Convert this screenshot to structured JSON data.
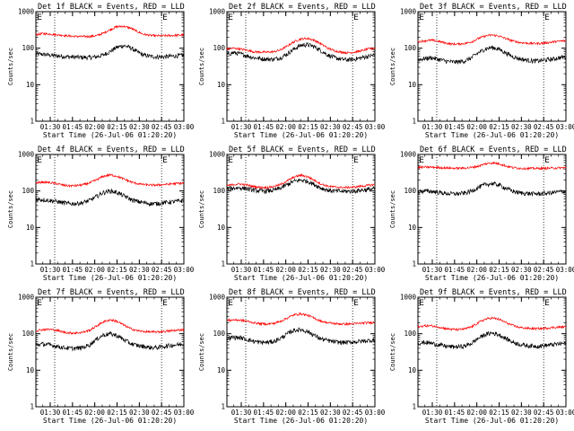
{
  "chart_data": [
    {
      "type": "line",
      "title": "Det 1f BLACK = Events, RED = LLD",
      "xlabel": "Start Time (26-Jul-06 01:20:20)",
      "ylabel": "Counts/sec",
      "yscale": "log",
      "ylim": [
        1,
        1000
      ],
      "xlim": [
        "01:20:20",
        "03:00:00"
      ],
      "x_ticks": [
        "01:30",
        "01:45",
        "02:00",
        "02:15",
        "02:30",
        "02:45",
        "03:00"
      ],
      "y_ticks": [
        "1",
        "10",
        "100",
        "1000"
      ],
      "markers": [
        {
          "label": "E",
          "x": "01:20:30"
        },
        {
          "label": "E",
          "x": "02:45:00"
        }
      ],
      "dotted_vlines": [
        "01:33:00",
        "02:45:00"
      ],
      "legend": "none",
      "grid": false,
      "series": [
        {
          "name": "BLACK = Events",
          "color": "#000000",
          "values": [
            70,
            68,
            65,
            62,
            60,
            58,
            57,
            56,
            56,
            58,
            65,
            80,
            105,
            118,
            105,
            80,
            65,
            60,
            58,
            58,
            60,
            62,
            64
          ]
        },
        {
          "name": "RED = LLD",
          "color": "#ff0000",
          "values": [
            235,
            250,
            245,
            235,
            225,
            215,
            210,
            208,
            210,
            220,
            255,
            320,
            385,
            400,
            360,
            290,
            240,
            225,
            218,
            220,
            222,
            226,
            232
          ]
        }
      ]
    },
    {
      "type": "line",
      "title": "Det 2f BLACK = Events, RED = LLD",
      "xlabel": "Start Time (26-Jul-06 01:20:20)",
      "ylabel": "Counts/sec",
      "yscale": "log",
      "ylim": [
        1,
        1000
      ],
      "xlim": [
        "01:20:20",
        "03:00:00"
      ],
      "x_ticks": [
        "01:30",
        "01:45",
        "02:00",
        "02:15",
        "02:30",
        "02:45",
        "03:00"
      ],
      "y_ticks": [
        "1",
        "10",
        "100",
        "1000"
      ],
      "markers": [
        {
          "label": "E",
          "x": "01:20:30"
        },
        {
          "label": "E",
          "x": "02:45:00"
        }
      ],
      "dotted_vlines": [
        "01:33:00",
        "02:45:00"
      ],
      "legend": "none",
      "grid": false,
      "series": [
        {
          "name": "BLACK = Events",
          "color": "#000000",
          "values": [
            68,
            75,
            70,
            62,
            55,
            52,
            50,
            50,
            55,
            70,
            95,
            120,
            125,
            110,
            85,
            65,
            55,
            50,
            48,
            50,
            55,
            60,
            65
          ]
        },
        {
          "name": "RED = LLD",
          "color": "#ff0000",
          "values": [
            95,
            100,
            95,
            88,
            80,
            78,
            78,
            80,
            90,
            115,
            150,
            180,
            185,
            165,
            130,
            100,
            85,
            78,
            75,
            78,
            85,
            95,
            100
          ]
        }
      ]
    },
    {
      "type": "line",
      "title": "Det 3f BLACK = Events, RED = LLD",
      "xlabel": "Start Time (26-Jul-06 01:20:20)",
      "ylabel": "Counts/sec",
      "yscale": "log",
      "ylim": [
        1,
        1000
      ],
      "xlim": [
        "01:20:20",
        "03:00:00"
      ],
      "x_ticks": [
        "01:30",
        "01:45",
        "02:00",
        "02:15",
        "02:30",
        "02:45",
        "03:00"
      ],
      "y_ticks": [
        "1",
        "10",
        "100",
        "1000"
      ],
      "markers": [
        {
          "label": "E",
          "x": "01:20:30"
        },
        {
          "label": "E",
          "x": "02:45:00"
        }
      ],
      "dotted_vlines": [
        "01:33:00",
        "02:45:00"
      ],
      "legend": "none",
      "grid": false,
      "series": [
        {
          "name": "BLACK = Events",
          "color": "#000000",
          "values": [
            48,
            52,
            55,
            50,
            45,
            42,
            42,
            45,
            55,
            75,
            95,
            105,
            95,
            75,
            60,
            52,
            48,
            45,
            45,
            48,
            50,
            55,
            58
          ]
        },
        {
          "name": "RED = LLD",
          "color": "#ff0000",
          "values": [
            150,
            160,
            165,
            155,
            140,
            130,
            130,
            135,
            150,
            185,
            215,
            230,
            215,
            185,
            160,
            145,
            138,
            135,
            135,
            140,
            148,
            155,
            160
          ]
        }
      ]
    },
    {
      "type": "line",
      "title": "Det 4f BLACK = Events, RED = LLD",
      "xlabel": "Start Time (26-Jul-06 01:20:20)",
      "ylabel": "Counts/sec",
      "yscale": "log",
      "ylim": [
        1,
        1000
      ],
      "xlim": [
        "01:20:20",
        "03:00:00"
      ],
      "x_ticks": [
        "01:30",
        "01:45",
        "02:00",
        "02:15",
        "02:30",
        "02:45",
        "03:00"
      ],
      "y_ticks": [
        "1",
        "10",
        "100",
        "1000"
      ],
      "markers": [
        {
          "label": "E",
          "x": "01:20:30"
        },
        {
          "label": "E",
          "x": "02:45:00"
        }
      ],
      "dotted_vlines": [
        "01:33:00",
        "02:45:00"
      ],
      "legend": "none",
      "grid": false,
      "series": [
        {
          "name": "BLACK = Events",
          "color": "#000000",
          "values": [
            60,
            58,
            55,
            52,
            48,
            45,
            45,
            48,
            55,
            70,
            90,
            100,
            92,
            75,
            60,
            52,
            48,
            45,
            45,
            48,
            50,
            52,
            55
          ]
        },
        {
          "name": "RED = LLD",
          "color": "#ff0000",
          "values": [
            165,
            175,
            170,
            160,
            145,
            138,
            140,
            148,
            165,
            200,
            250,
            275,
            255,
            215,
            180,
            160,
            150,
            145,
            145,
            150,
            155,
            160,
            165
          ]
        }
      ]
    },
    {
      "type": "line",
      "title": "Det 5f BLACK = Events, RED = LLD",
      "xlabel": "Start Time (26-Jul-06 01:20:20)",
      "ylabel": "Counts/sec",
      "yscale": "log",
      "ylim": [
        1,
        1000
      ],
      "xlim": [
        "01:20:20",
        "03:00:00"
      ],
      "x_ticks": [
        "01:30",
        "01:45",
        "02:00",
        "02:15",
        "02:30",
        "02:45",
        "03:00"
      ],
      "y_ticks": [
        "1",
        "10",
        "100",
        "1000"
      ],
      "markers": [
        {
          "label": "E",
          "x": "01:20:30"
        },
        {
          "label": "E",
          "x": "02:45:00"
        }
      ],
      "dotted_vlines": [
        "01:33:00",
        "02:45:00"
      ],
      "legend": "none",
      "grid": false,
      "series": [
        {
          "name": "BLACK = Events",
          "color": "#000000",
          "values": [
            115,
            120,
            122,
            115,
            105,
            100,
            100,
            105,
            120,
            150,
            185,
            200,
            185,
            150,
            120,
            105,
            100,
            98,
            98,
            100,
            105,
            110,
            115
          ]
        },
        {
          "name": "RED = LLD",
          "color": "#ff0000",
          "values": [
            140,
            150,
            155,
            145,
            132,
            125,
            125,
            132,
            150,
            190,
            240,
            270,
            245,
            195,
            155,
            135,
            128,
            125,
            125,
            128,
            135,
            142,
            150
          ]
        }
      ]
    },
    {
      "type": "line",
      "title": "Det 6f BLACK = Events, RED = LLD",
      "xlabel": "Start Time (26-Jul-06 01:20:20)",
      "ylabel": "Counts/sec",
      "yscale": "log",
      "ylim": [
        1,
        1000
      ],
      "xlim": [
        "01:20:20",
        "03:00:00"
      ],
      "x_ticks": [
        "01:30",
        "01:45",
        "02:00",
        "02:15",
        "02:30",
        "02:45",
        "03:00"
      ],
      "y_ticks": [
        "1",
        "10",
        "100",
        "1000"
      ],
      "markers": [
        {
          "label": "E",
          "x": "01:20:30"
        },
        {
          "label": "E",
          "x": "02:45:00"
        }
      ],
      "dotted_vlines": [
        "01:33:00",
        "02:45:00"
      ],
      "legend": "none",
      "grid": false,
      "series": [
        {
          "name": "BLACK = Events",
          "color": "#000000",
          "values": [
            95,
            100,
            98,
            92,
            86,
            84,
            84,
            88,
            100,
            125,
            150,
            160,
            148,
            120,
            100,
            90,
            86,
            84,
            84,
            86,
            90,
            95,
            98
          ]
        },
        {
          "name": "RED = LLD",
          "color": "#ff0000",
          "values": [
            440,
            450,
            448,
            440,
            430,
            420,
            420,
            425,
            440,
            480,
            550,
            590,
            560,
            490,
            440,
            420,
            415,
            415,
            415,
            418,
            422,
            428,
            435
          ]
        }
      ]
    },
    {
      "type": "line",
      "title": "Det 7f BLACK = Events, RED = LLD",
      "xlabel": "Start Time (26-Jul-06 01:20:20)",
      "ylabel": "Counts/sec",
      "yscale": "log",
      "ylim": [
        1,
        1000
      ],
      "xlim": [
        "01:20:20",
        "03:00:00"
      ],
      "x_ticks": [
        "01:30",
        "01:45",
        "02:00",
        "02:15",
        "02:30",
        "02:45",
        "03:00"
      ],
      "y_ticks": [
        "1",
        "10",
        "100",
        "1000"
      ],
      "markers": [
        {
          "label": "E",
          "x": "01:20:30"
        },
        {
          "label": "E",
          "x": "02:45:00"
        }
      ],
      "dotted_vlines": [
        "01:33:00",
        "02:45:00"
      ],
      "legend": "none",
      "grid": false,
      "series": [
        {
          "name": "BLACK = Events",
          "color": "#000000",
          "values": [
            50,
            52,
            50,
            46,
            42,
            40,
            40,
            42,
            50,
            70,
            92,
            100,
            90,
            70,
            55,
            48,
            45,
            42,
            42,
            45,
            48,
            50,
            52
          ]
        },
        {
          "name": "RED = LLD",
          "color": "#ff0000",
          "values": [
            120,
            130,
            132,
            125,
            112,
            105,
            105,
            110,
            125,
            160,
            210,
            240,
            220,
            175,
            140,
            122,
            115,
            112,
            112,
            115,
            120,
            125,
            130
          ]
        }
      ]
    },
    {
      "type": "line",
      "title": "Det 8f BLACK = Events, RED = LLD",
      "xlabel": "Start Time (26-Jul-06 01:20:20)",
      "ylabel": "Counts/sec",
      "yscale": "log",
      "ylim": [
        1,
        1000
      ],
      "xlim": [
        "01:20:20",
        "03:00:00"
      ],
      "x_ticks": [
        "01:30",
        "01:45",
        "02:00",
        "02:15",
        "02:30",
        "02:45",
        "03:00"
      ],
      "y_ticks": [
        "1",
        "10",
        "100",
        "1000"
      ],
      "markers": [
        {
          "label": "E",
          "x": "01:20:30"
        },
        {
          "label": "E",
          "x": "02:45:00"
        }
      ],
      "dotted_vlines": [
        "01:33:00",
        "02:45:00"
      ],
      "legend": "none",
      "grid": false,
      "series": [
        {
          "name": "BLACK = Events",
          "color": "#000000",
          "values": [
            75,
            80,
            78,
            70,
            62,
            58,
            58,
            62,
            75,
            100,
            125,
            130,
            115,
            90,
            72,
            65,
            60,
            58,
            58,
            60,
            62,
            65,
            68
          ]
        },
        {
          "name": "RED = LLD",
          "color": "#ff0000",
          "values": [
            230,
            240,
            235,
            220,
            200,
            188,
            185,
            192,
            220,
            270,
            330,
            350,
            320,
            265,
            220,
            200,
            190,
            185,
            185,
            188,
            195,
            200,
            205
          ]
        }
      ]
    },
    {
      "type": "line",
      "title": "Det 9f BLACK = Events, RED = LLD",
      "xlabel": "Start Time (26-Jul-06 01:20:20)",
      "ylabel": "Counts/sec",
      "yscale": "log",
      "ylim": [
        1,
        1000
      ],
      "xlim": [
        "01:20:20",
        "03:00:00"
      ],
      "x_ticks": [
        "01:30",
        "01:45",
        "02:00",
        "02:15",
        "02:30",
        "02:45",
        "03:00"
      ],
      "y_ticks": [
        "1",
        "10",
        "100",
        "1000"
      ],
      "markers": [
        {
          "label": "E",
          "x": "01:20:30"
        },
        {
          "label": "E",
          "x": "02:45:00"
        }
      ],
      "dotted_vlines": [
        "01:33:00",
        "02:45:00"
      ],
      "legend": "none",
      "grid": false,
      "series": [
        {
          "name": "BLACK = Events",
          "color": "#000000",
          "values": [
            55,
            58,
            55,
            50,
            46,
            44,
            44,
            46,
            55,
            75,
            95,
            105,
            95,
            75,
            60,
            52,
            48,
            46,
            46,
            48,
            50,
            53,
            55
          ]
        },
        {
          "name": "RED = LLD",
          "color": "#ff0000",
          "values": [
            155,
            165,
            165,
            155,
            140,
            132,
            130,
            136,
            155,
            200,
            250,
            270,
            250,
            205,
            170,
            150,
            142,
            138,
            138,
            142,
            148,
            152,
            155
          ]
        }
      ]
    }
  ]
}
